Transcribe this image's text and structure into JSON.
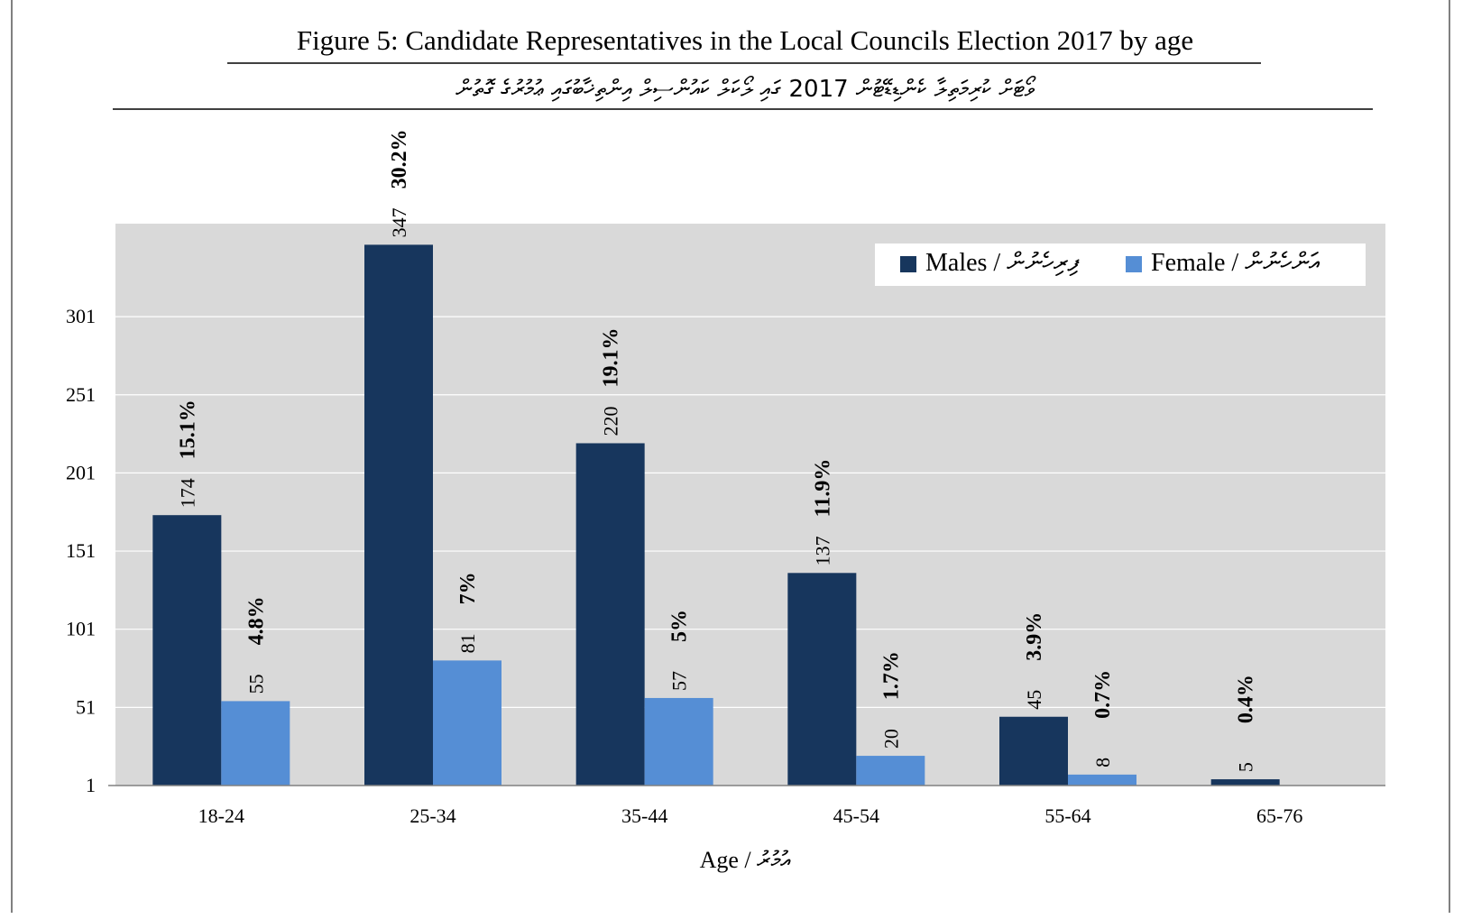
{
  "chart_data": {
    "type": "bar",
    "title": "Figure 5: Candidate Representatives in the Local Councils Election 2017 by age",
    "subtitle": "ވޯޓަށް ކުރިމަތިލާ ކެންޑިޑޭޓުން 2017 ގައި ލޯކަލް ކައުންސިލް އިންތިޚާބުގައި ޢުމުރުގެ ގޮތުން",
    "xlabel": "Age / އުމުރު",
    "ylabel": "",
    "categories": [
      "18-24",
      "25-34",
      "35-44",
      "45-54",
      "55-64",
      "65-76"
    ],
    "yticks": [
      1,
      51,
      101,
      151,
      201,
      251,
      301
    ],
    "ylim": [
      1,
      348
    ],
    "grid": true,
    "legend_position": "top-right",
    "series": [
      {
        "name": "Males / ފިރިހެނުން",
        "color": "#17365d",
        "values": [
          174,
          347,
          220,
          137,
          45,
          5
        ],
        "percent_labels": [
          "15.1%",
          "30.2%",
          "19.1%",
          "11.9%",
          "3.9%",
          "0.4%"
        ]
      },
      {
        "name": "Female / އަންހެނުން",
        "color": "#558ed5",
        "values": [
          55,
          81,
          57,
          20,
          8,
          null
        ],
        "percent_labels": [
          "4.8%",
          "7%",
          "5%",
          "1.7%",
          "0.7%",
          null
        ]
      }
    ],
    "colors": {
      "plot_background": "#d9d9d9",
      "gridline": "#ffffff"
    }
  }
}
